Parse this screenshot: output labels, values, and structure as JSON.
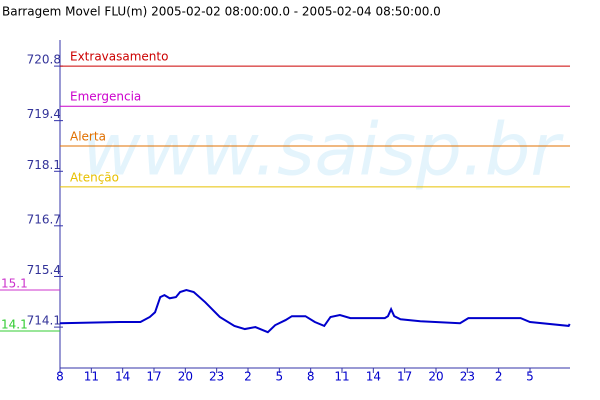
{
  "chart_data": {
    "type": "line",
    "title": "Barragem Movel FLU(m) 2005-02-02 08:00:00.0 - 2005-02-04 08:50:00.0",
    "watermark": "www.saisp.br",
    "xlim": [
      0,
      48.83
    ],
    "ylim": [
      713.05,
      721.47
    ],
    "yticks": [
      714.1,
      715.4,
      716.7,
      718.1,
      719.4,
      720.8
    ],
    "xticks": [
      {
        "value": 0,
        "label": "8"
      },
      {
        "value": 3,
        "label": "11"
      },
      {
        "value": 6,
        "label": "14"
      },
      {
        "value": 9,
        "label": "17"
      },
      {
        "value": 12,
        "label": "20"
      },
      {
        "value": 15,
        "label": "23"
      },
      {
        "value": 18,
        "label": "2"
      },
      {
        "value": 21,
        "label": "5"
      },
      {
        "value": 24,
        "label": "8"
      },
      {
        "value": 27,
        "label": "11"
      },
      {
        "value": 30,
        "label": "14"
      },
      {
        "value": 33,
        "label": "17"
      },
      {
        "value": 36,
        "label": "20"
      },
      {
        "value": 39,
        "label": "23"
      },
      {
        "value": 42,
        "label": "2"
      },
      {
        "value": 45,
        "label": "5"
      }
    ],
    "thresholds": [
      {
        "label": "Extravasamento",
        "value": 720.8,
        "color": "#cc0000"
      },
      {
        "label": "Emergencia",
        "value": 719.77,
        "color": "#cc00cc"
      },
      {
        "label": "Alerta",
        "value": 718.75,
        "color": "#e07000"
      },
      {
        "label": "Atenção",
        "value": 717.7,
        "color": "#e8c000"
      }
    ],
    "side_labels": [
      {
        "label": "15.1",
        "color": "#cc33cc"
      },
      {
        "label": "14.1",
        "color": "#33cc33"
      }
    ],
    "series": [
      {
        "name": "Barragem Movel FLU",
        "color": "#0000cc",
        "x": [
          0,
          5.7,
          7.7,
          8.6,
          9.1,
          9.6,
          10,
          10.5,
          11.1,
          11.5,
          12.1,
          12.8,
          13.9,
          15.3,
          16.7,
          17.7,
          18.7,
          19.9,
          20.6,
          21.6,
          22.2,
          23.5,
          24.4,
          25.3,
          25.9,
          26.8,
          27.8,
          31.1,
          31.4,
          31.7,
          32.0,
          32.6,
          34.5,
          38.3,
          39.1,
          44.1,
          45.0,
          48.7,
          48.8
        ],
        "values": [
          714.2,
          714.23,
          714.23,
          714.36,
          714.48,
          714.87,
          714.92,
          714.84,
          714.87,
          715.0,
          715.05,
          715.0,
          714.74,
          714.36,
          714.13,
          714.05,
          714.1,
          713.97,
          714.15,
          714.28,
          714.38,
          714.38,
          714.23,
          714.13,
          714.36,
          714.41,
          714.33,
          714.33,
          714.38,
          714.56,
          714.38,
          714.3,
          714.25,
          714.2,
          714.33,
          714.33,
          714.23,
          714.13,
          714.18
        ]
      }
    ]
  }
}
